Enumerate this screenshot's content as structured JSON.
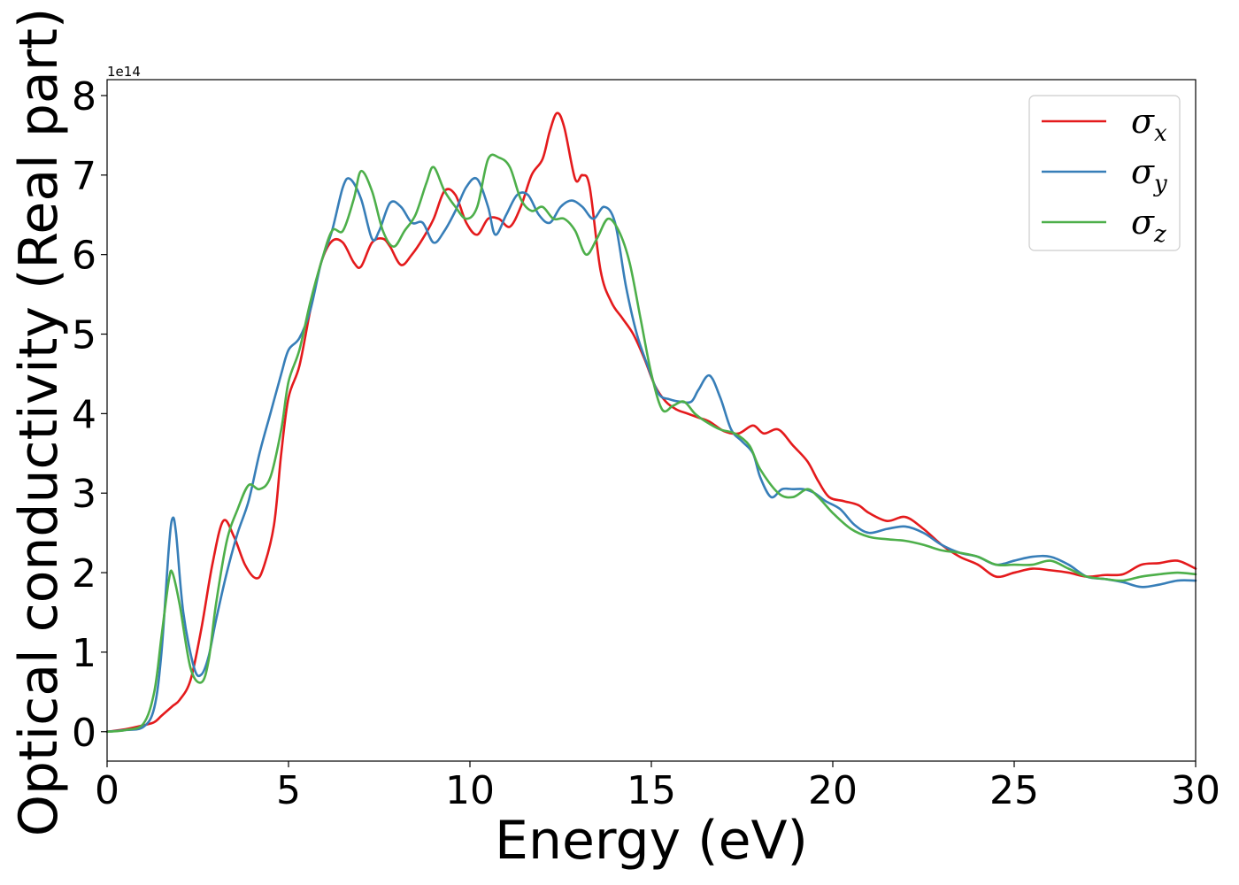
{
  "chart_data": {
    "type": "line",
    "xlabel": "Energy (eV)",
    "ylabel": "Optical conductivity (Real part)",
    "offset_text": "1e14",
    "xlim": [
      0,
      30
    ],
    "ylim": [
      -0.37,
      8.2
    ],
    "xticks": [
      0,
      5,
      10,
      15,
      20,
      25,
      30
    ],
    "yticks": [
      0,
      1,
      2,
      3,
      4,
      5,
      6,
      7,
      8
    ],
    "x_tick_labels": [
      "0",
      "5",
      "10",
      "15",
      "20",
      "25",
      "30"
    ],
    "y_tick_labels": [
      "0",
      "1",
      "2",
      "3",
      "4",
      "5",
      "6",
      "7",
      "8"
    ],
    "grid": false,
    "legend_position": "top-right",
    "series": [
      {
        "name": "σx",
        "symbol": "σ",
        "sub": "x",
        "color": "#e41a1c",
        "points": [
          [
            0,
            0
          ],
          [
            0.5,
            0.03
          ],
          [
            1,
            0.08
          ],
          [
            1.3,
            0.12
          ],
          [
            1.5,
            0.2
          ],
          [
            1.8,
            0.32
          ],
          [
            2,
            0.4
          ],
          [
            2.3,
            0.65
          ],
          [
            2.6,
            1.3
          ],
          [
            2.9,
            2.1
          ],
          [
            3.2,
            2.65
          ],
          [
            3.5,
            2.45
          ],
          [
            3.8,
            2.1
          ],
          [
            4.1,
            1.93
          ],
          [
            4.3,
            2.05
          ],
          [
            4.6,
            2.6
          ],
          [
            4.8,
            3.5
          ],
          [
            5,
            4.2
          ],
          [
            5.3,
            4.6
          ],
          [
            5.6,
            5.3
          ],
          [
            5.9,
            5.9
          ],
          [
            6.2,
            6.17
          ],
          [
            6.5,
            6.15
          ],
          [
            6.8,
            5.9
          ],
          [
            7,
            5.85
          ],
          [
            7.3,
            6.15
          ],
          [
            7.6,
            6.2
          ],
          [
            7.8,
            6.1
          ],
          [
            8.1,
            5.87
          ],
          [
            8.4,
            6.0
          ],
          [
            8.7,
            6.2
          ],
          [
            9,
            6.45
          ],
          [
            9.3,
            6.8
          ],
          [
            9.6,
            6.75
          ],
          [
            9.9,
            6.4
          ],
          [
            10.2,
            6.25
          ],
          [
            10.5,
            6.45
          ],
          [
            10.8,
            6.45
          ],
          [
            11.1,
            6.35
          ],
          [
            11.4,
            6.6
          ],
          [
            11.7,
            7.0
          ],
          [
            12,
            7.2
          ],
          [
            12.2,
            7.55
          ],
          [
            12.4,
            7.78
          ],
          [
            12.6,
            7.6
          ],
          [
            12.9,
            6.95
          ],
          [
            13.1,
            7.0
          ],
          [
            13.3,
            6.85
          ],
          [
            13.6,
            5.8
          ],
          [
            13.9,
            5.4
          ],
          [
            14.2,
            5.2
          ],
          [
            14.5,
            5.0
          ],
          [
            14.8,
            4.7
          ],
          [
            15.1,
            4.35
          ],
          [
            15.4,
            4.15
          ],
          [
            15.7,
            4.05
          ],
          [
            16,
            4.0
          ],
          [
            16.3,
            3.95
          ],
          [
            16.6,
            3.9
          ],
          [
            17,
            3.78
          ],
          [
            17.4,
            3.75
          ],
          [
            17.8,
            3.85
          ],
          [
            18.1,
            3.75
          ],
          [
            18.5,
            3.8
          ],
          [
            18.9,
            3.6
          ],
          [
            19.3,
            3.4
          ],
          [
            19.6,
            3.15
          ],
          [
            19.9,
            2.95
          ],
          [
            20.3,
            2.9
          ],
          [
            20.7,
            2.85
          ],
          [
            21,
            2.75
          ],
          [
            21.5,
            2.65
          ],
          [
            22,
            2.7
          ],
          [
            22.5,
            2.55
          ],
          [
            23,
            2.35
          ],
          [
            23.5,
            2.2
          ],
          [
            24,
            2.1
          ],
          [
            24.5,
            1.95
          ],
          [
            25,
            2.0
          ],
          [
            25.5,
            2.05
          ],
          [
            26,
            2.03
          ],
          [
            26.5,
            2.0
          ],
          [
            27,
            1.95
          ],
          [
            27.5,
            1.97
          ],
          [
            28,
            1.98
          ],
          [
            28.5,
            2.1
          ],
          [
            29,
            2.12
          ],
          [
            29.5,
            2.15
          ],
          [
            30,
            2.05
          ]
        ]
      },
      {
        "name": "σy",
        "symbol": "σ",
        "sub": "y",
        "color": "#377eb8",
        "points": [
          [
            0,
            0
          ],
          [
            0.5,
            0.02
          ],
          [
            1,
            0.06
          ],
          [
            1.3,
            0.3
          ],
          [
            1.5,
            1.0
          ],
          [
            1.7,
            2.3
          ],
          [
            1.8,
            2.68
          ],
          [
            1.9,
            2.5
          ],
          [
            2.1,
            1.5
          ],
          [
            2.4,
            0.8
          ],
          [
            2.6,
            0.72
          ],
          [
            2.8,
            0.95
          ],
          [
            3,
            1.4
          ],
          [
            3.3,
            2.0
          ],
          [
            3.6,
            2.5
          ],
          [
            3.9,
            2.9
          ],
          [
            4.2,
            3.5
          ],
          [
            4.5,
            4.0
          ],
          [
            4.8,
            4.5
          ],
          [
            5,
            4.8
          ],
          [
            5.3,
            4.95
          ],
          [
            5.6,
            5.3
          ],
          [
            5.9,
            5.9
          ],
          [
            6.2,
            6.3
          ],
          [
            6.5,
            6.85
          ],
          [
            6.7,
            6.95
          ],
          [
            7,
            6.7
          ],
          [
            7.3,
            6.2
          ],
          [
            7.5,
            6.3
          ],
          [
            7.8,
            6.65
          ],
          [
            8.1,
            6.6
          ],
          [
            8.4,
            6.4
          ],
          [
            8.7,
            6.4
          ],
          [
            9,
            6.15
          ],
          [
            9.3,
            6.3
          ],
          [
            9.6,
            6.55
          ],
          [
            9.9,
            6.85
          ],
          [
            10.2,
            6.95
          ],
          [
            10.5,
            6.6
          ],
          [
            10.7,
            6.25
          ],
          [
            11,
            6.5
          ],
          [
            11.3,
            6.75
          ],
          [
            11.6,
            6.75
          ],
          [
            11.9,
            6.5
          ],
          [
            12.2,
            6.4
          ],
          [
            12.5,
            6.6
          ],
          [
            12.8,
            6.68
          ],
          [
            13.1,
            6.6
          ],
          [
            13.4,
            6.45
          ],
          [
            13.7,
            6.6
          ],
          [
            14,
            6.4
          ],
          [
            14.3,
            5.6
          ],
          [
            14.6,
            5.0
          ],
          [
            14.9,
            4.6
          ],
          [
            15.2,
            4.25
          ],
          [
            15.5,
            4.18
          ],
          [
            15.8,
            4.15
          ],
          [
            16.1,
            4.15
          ],
          [
            16.3,
            4.3
          ],
          [
            16.6,
            4.48
          ],
          [
            16.9,
            4.2
          ],
          [
            17.2,
            3.8
          ],
          [
            17.5,
            3.65
          ],
          [
            17.8,
            3.5
          ],
          [
            18,
            3.2
          ],
          [
            18.3,
            2.95
          ],
          [
            18.6,
            3.05
          ],
          [
            18.9,
            3.05
          ],
          [
            19.2,
            3.05
          ],
          [
            19.5,
            3.0
          ],
          [
            19.8,
            2.9
          ],
          [
            20.2,
            2.8
          ],
          [
            20.6,
            2.6
          ],
          [
            21,
            2.5
          ],
          [
            21.5,
            2.55
          ],
          [
            22,
            2.58
          ],
          [
            22.5,
            2.5
          ],
          [
            23,
            2.35
          ],
          [
            23.5,
            2.25
          ],
          [
            24,
            2.2
          ],
          [
            24.5,
            2.1
          ],
          [
            25,
            2.15
          ],
          [
            25.5,
            2.2
          ],
          [
            26,
            2.2
          ],
          [
            26.5,
            2.1
          ],
          [
            27,
            1.95
          ],
          [
            27.5,
            1.92
          ],
          [
            28,
            1.88
          ],
          [
            28.5,
            1.82
          ],
          [
            29,
            1.85
          ],
          [
            29.5,
            1.9
          ],
          [
            30,
            1.9
          ]
        ]
      },
      {
        "name": "σz",
        "symbol": "σ",
        "sub": "z",
        "color": "#4daf4a",
        "points": [
          [
            0,
            0
          ],
          [
            0.5,
            0.02
          ],
          [
            1,
            0.1
          ],
          [
            1.3,
            0.5
          ],
          [
            1.5,
            1.2
          ],
          [
            1.7,
            1.9
          ],
          [
            1.8,
            2.0
          ],
          [
            2,
            1.6
          ],
          [
            2.3,
            0.8
          ],
          [
            2.6,
            0.62
          ],
          [
            2.8,
            0.9
          ],
          [
            3,
            1.6
          ],
          [
            3.3,
            2.4
          ],
          [
            3.6,
            2.8
          ],
          [
            3.9,
            3.1
          ],
          [
            4.2,
            3.05
          ],
          [
            4.5,
            3.2
          ],
          [
            4.8,
            3.8
          ],
          [
            5,
            4.4
          ],
          [
            5.3,
            4.8
          ],
          [
            5.6,
            5.4
          ],
          [
            5.9,
            5.9
          ],
          [
            6.2,
            6.3
          ],
          [
            6.5,
            6.3
          ],
          [
            6.8,
            6.7
          ],
          [
            7,
            7.05
          ],
          [
            7.3,
            6.8
          ],
          [
            7.6,
            6.3
          ],
          [
            7.9,
            6.1
          ],
          [
            8.2,
            6.3
          ],
          [
            8.5,
            6.5
          ],
          [
            8.8,
            6.9
          ],
          [
            9,
            7.1
          ],
          [
            9.3,
            6.8
          ],
          [
            9.6,
            6.6
          ],
          [
            9.9,
            6.45
          ],
          [
            10.2,
            6.6
          ],
          [
            10.5,
            7.2
          ],
          [
            10.8,
            7.22
          ],
          [
            11.1,
            7.1
          ],
          [
            11.4,
            6.7
          ],
          [
            11.7,
            6.55
          ],
          [
            12,
            6.6
          ],
          [
            12.3,
            6.45
          ],
          [
            12.6,
            6.45
          ],
          [
            12.9,
            6.3
          ],
          [
            13.2,
            6.0
          ],
          [
            13.5,
            6.2
          ],
          [
            13.8,
            6.45
          ],
          [
            14.1,
            6.3
          ],
          [
            14.4,
            5.9
          ],
          [
            14.7,
            5.2
          ],
          [
            15,
            4.5
          ],
          [
            15.3,
            4.05
          ],
          [
            15.6,
            4.1
          ],
          [
            15.9,
            4.15
          ],
          [
            16.2,
            4.0
          ],
          [
            16.5,
            3.9
          ],
          [
            16.9,
            3.8
          ],
          [
            17.3,
            3.75
          ],
          [
            17.7,
            3.6
          ],
          [
            18,
            3.3
          ],
          [
            18.5,
            3.0
          ],
          [
            18.9,
            2.95
          ],
          [
            19.3,
            3.05
          ],
          [
            19.6,
            2.95
          ],
          [
            20,
            2.75
          ],
          [
            20.5,
            2.55
          ],
          [
            21,
            2.45
          ],
          [
            21.5,
            2.42
          ],
          [
            22,
            2.4
          ],
          [
            22.5,
            2.35
          ],
          [
            23,
            2.28
          ],
          [
            23.5,
            2.25
          ],
          [
            24,
            2.2
          ],
          [
            24.5,
            2.1
          ],
          [
            25,
            2.1
          ],
          [
            25.5,
            2.1
          ],
          [
            26,
            2.15
          ],
          [
            26.5,
            2.05
          ],
          [
            27,
            1.95
          ],
          [
            27.5,
            1.92
          ],
          [
            28,
            1.9
          ],
          [
            28.5,
            1.95
          ],
          [
            29,
            1.98
          ],
          [
            29.5,
            2.0
          ],
          [
            30,
            1.98
          ]
        ]
      }
    ]
  }
}
